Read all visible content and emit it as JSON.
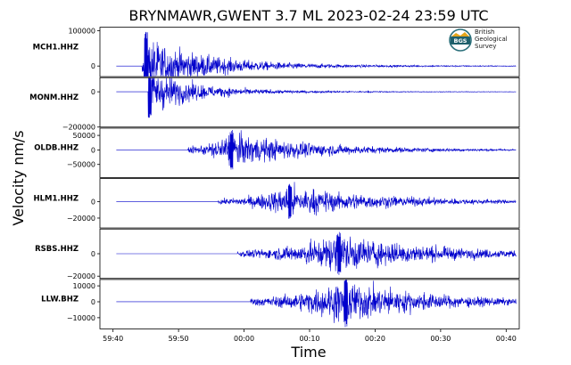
{
  "chart_data": {
    "type": "line",
    "title": "BRYNMAWR,GWENT 3.7 ML   2023-02-24 23:59 UTC",
    "xlabel": "Time",
    "ylabel": "Velocity nm/s",
    "x_tick_labels": [
      "59:40",
      "59:50",
      "00:00",
      "00:10",
      "00:20",
      "00:30",
      "00:40"
    ],
    "x_ticks_seconds": [
      -20,
      -10,
      0,
      10,
      20,
      30,
      40
    ],
    "x_range_seconds": [
      -22,
      42
    ],
    "trace_color": "#0000cc",
    "grid": false,
    "series": [
      {
        "name": "MCH1.HHZ",
        "ylim": [
          -30000,
          110000
        ],
        "yticks": [
          0,
          100000
        ],
        "ytick_labels": [
          "0",
          "100000"
        ],
        "onset_s": -15.6,
        "peak_s": -15.0,
        "peak_amplitude": 100000,
        "decay_s": 8,
        "coda_s": 25
      },
      {
        "name": "MONM.HHZ",
        "ylim": [
          -200000,
          80000
        ],
        "yticks": [
          0,
          -200000
        ],
        "ytick_labels": [
          "0",
          "−200000"
        ],
        "onset_s": -14.6,
        "peak_s": -14.4,
        "peak_amplitude": 160000,
        "decay_s": 6,
        "coda_s": 20
      },
      {
        "name": "OLDB.HHZ",
        "ylim": [
          -95000,
          75000
        ],
        "yticks": [
          50000,
          0,
          -50000
        ],
        "ytick_labels": [
          "50000",
          "0",
          "−50000"
        ],
        "onset_s": -8.6,
        "peak_s": -1.9,
        "peak_amplitude": 70000,
        "decay_s": 12,
        "coda_s": 30
      },
      {
        "name": "HLM1.HHZ",
        "ylim": [
          -32000,
          28000
        ],
        "yticks": [
          0,
          -20000
        ],
        "ytick_labels": [
          "0",
          "−20000"
        ],
        "onset_s": -4.0,
        "peak_s": 7.0,
        "peak_amplitude": 22000,
        "decay_s": 14,
        "coda_s": 30
      },
      {
        "name": "RSBS.HHZ",
        "ylim": [
          -22000,
          22000
        ],
        "yticks": [
          0,
          -20000
        ],
        "ytick_labels": [
          "0",
          "−20000"
        ],
        "onset_s": -1.0,
        "peak_s": 14.5,
        "peak_amplitude": 20000,
        "decay_s": 14,
        "coda_s": 30
      },
      {
        "name": "LLW.BHZ",
        "ylim": [
          -17000,
          14000
        ],
        "yticks": [
          10000,
          0,
          -10000
        ],
        "ytick_labels": [
          "10000",
          "0",
          "−10000"
        ],
        "onset_s": 1.0,
        "peak_s": 15.5,
        "peak_amplitude": 16000,
        "decay_s": 12,
        "coda_s": 26
      }
    ]
  },
  "logo": {
    "badge": "BGS",
    "lines": [
      "British",
      "Geological",
      "Survey"
    ],
    "colors": {
      "ring": "#2a6f7a",
      "badge": "#1d5f6b",
      "accent": "#e3a51c"
    }
  }
}
